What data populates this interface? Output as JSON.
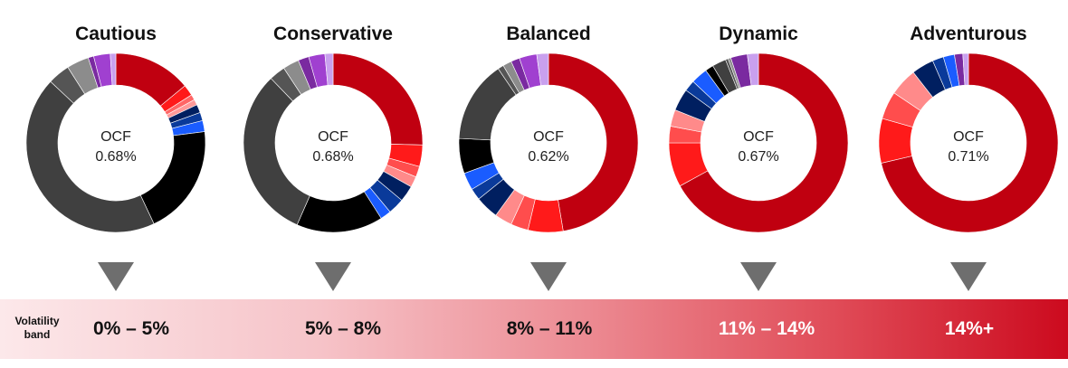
{
  "volatility_label": "Volatility band",
  "colors": {
    "arrow": "#6e6e6e",
    "band_start": "#fce8ea",
    "band_end": "#cc0a1e"
  },
  "chart_data": [
    {
      "type": "pie",
      "title": "Cautious",
      "center_label": "OCF",
      "ocf": "0.68%",
      "volatility_band": "0%  –  5%",
      "slices": [
        {
          "value": 14,
          "color": "#c00010"
        },
        {
          "value": 2,
          "color": "#ff1a1a"
        },
        {
          "value": 1,
          "color": "#ff6666"
        },
        {
          "value": 1,
          "color": "#ff9999"
        },
        {
          "value": 1.5,
          "color": "#001f60"
        },
        {
          "value": 1.5,
          "color": "#0a3a9a"
        },
        {
          "value": 2,
          "color": "#1a5cff"
        },
        {
          "value": 20,
          "color": "#000000"
        },
        {
          "value": 44,
          "color": "#404040"
        },
        {
          "value": 4,
          "color": "#555555"
        },
        {
          "value": 4,
          "color": "#8c8c8c"
        },
        {
          "value": 1,
          "color": "#7a2aa0"
        },
        {
          "value": 3,
          "color": "#a040d0"
        },
        {
          "value": 1,
          "color": "#c9a0ee"
        }
      ]
    },
    {
      "type": "pie",
      "title": "Conservative",
      "center_label": "OCF",
      "ocf": "0.68%",
      "volatility_band": "5%  –  8%",
      "slices": [
        {
          "value": 26,
          "color": "#c00010"
        },
        {
          "value": 4,
          "color": "#ff1a1a"
        },
        {
          "value": 2,
          "color": "#ff4d4d"
        },
        {
          "value": 2,
          "color": "#ff8a8a"
        },
        {
          "value": 3,
          "color": "#001f60"
        },
        {
          "value": 3,
          "color": "#0a3a9a"
        },
        {
          "value": 2,
          "color": "#1a5cff"
        },
        {
          "value": 16,
          "color": "#000000"
        },
        {
          "value": 32,
          "color": "#404040"
        },
        {
          "value": 3,
          "color": "#555555"
        },
        {
          "value": 3,
          "color": "#8c8c8c"
        },
        {
          "value": 2,
          "color": "#7a2aa0"
        },
        {
          "value": 3,
          "color": "#a040d0"
        },
        {
          "value": 1.5,
          "color": "#c9a0ee"
        }
      ]
    },
    {
      "type": "pie",
      "title": "Balanced",
      "center_label": "OCF",
      "ocf": "0.62%",
      "volatility_band": "8%  –  11%",
      "slices": [
        {
          "value": 45,
          "color": "#c00010"
        },
        {
          "value": 6,
          "color": "#ff1a1a"
        },
        {
          "value": 3,
          "color": "#ff4d4d"
        },
        {
          "value": 3,
          "color": "#ff8a8a"
        },
        {
          "value": 4,
          "color": "#001f60"
        },
        {
          "value": 2,
          "color": "#0a3a9a"
        },
        {
          "value": 3,
          "color": "#1a5cff"
        },
        {
          "value": 6,
          "color": "#000000"
        },
        {
          "value": 14,
          "color": "#404040"
        },
        {
          "value": 1,
          "color": "#555555"
        },
        {
          "value": 1.5,
          "color": "#8c8c8c"
        },
        {
          "value": 1.5,
          "color": "#7a2aa0"
        },
        {
          "value": 3,
          "color": "#a040d0"
        },
        {
          "value": 2,
          "color": "#c9a0ee"
        }
      ]
    },
    {
      "type": "pie",
      "title": "Dynamic",
      "center_label": "OCF",
      "ocf": "0.67%",
      "volatility_band": "11%  –  14%",
      "slices": [
        {
          "value": 67,
          "color": "#c00010"
        },
        {
          "value": 8,
          "color": "#ff1a1a"
        },
        {
          "value": 3,
          "color": "#ff4d4d"
        },
        {
          "value": 3,
          "color": "#ff8a8a"
        },
        {
          "value": 4,
          "color": "#001f60"
        },
        {
          "value": 2,
          "color": "#0a3a9a"
        },
        {
          "value": 3,
          "color": "#1a5cff"
        },
        {
          "value": 1.5,
          "color": "#000000"
        },
        {
          "value": 2.5,
          "color": "#404040"
        },
        {
          "value": 0.5,
          "color": "#555555"
        },
        {
          "value": 0.5,
          "color": "#8c8c8c"
        },
        {
          "value": 3,
          "color": "#7a2aa0"
        },
        {
          "value": 2,
          "color": "#c9a0ee"
        }
      ]
    },
    {
      "type": "pie",
      "title": "Adventurous",
      "center_label": "OCF",
      "ocf": "0.71%",
      "volatility_band": "14%+",
      "slices": [
        {
          "value": 71,
          "color": "#c00010"
        },
        {
          "value": 8,
          "color": "#ff1a1a"
        },
        {
          "value": 5,
          "color": "#ff4d4d"
        },
        {
          "value": 5,
          "color": "#ff8a8a"
        },
        {
          "value": 4,
          "color": "#001f60"
        },
        {
          "value": 2,
          "color": "#0a3a9a"
        },
        {
          "value": 2,
          "color": "#1a5cff"
        },
        {
          "value": 1.5,
          "color": "#7a2aa0"
        },
        {
          "value": 1,
          "color": "#c9a0ee"
        }
      ]
    }
  ]
}
